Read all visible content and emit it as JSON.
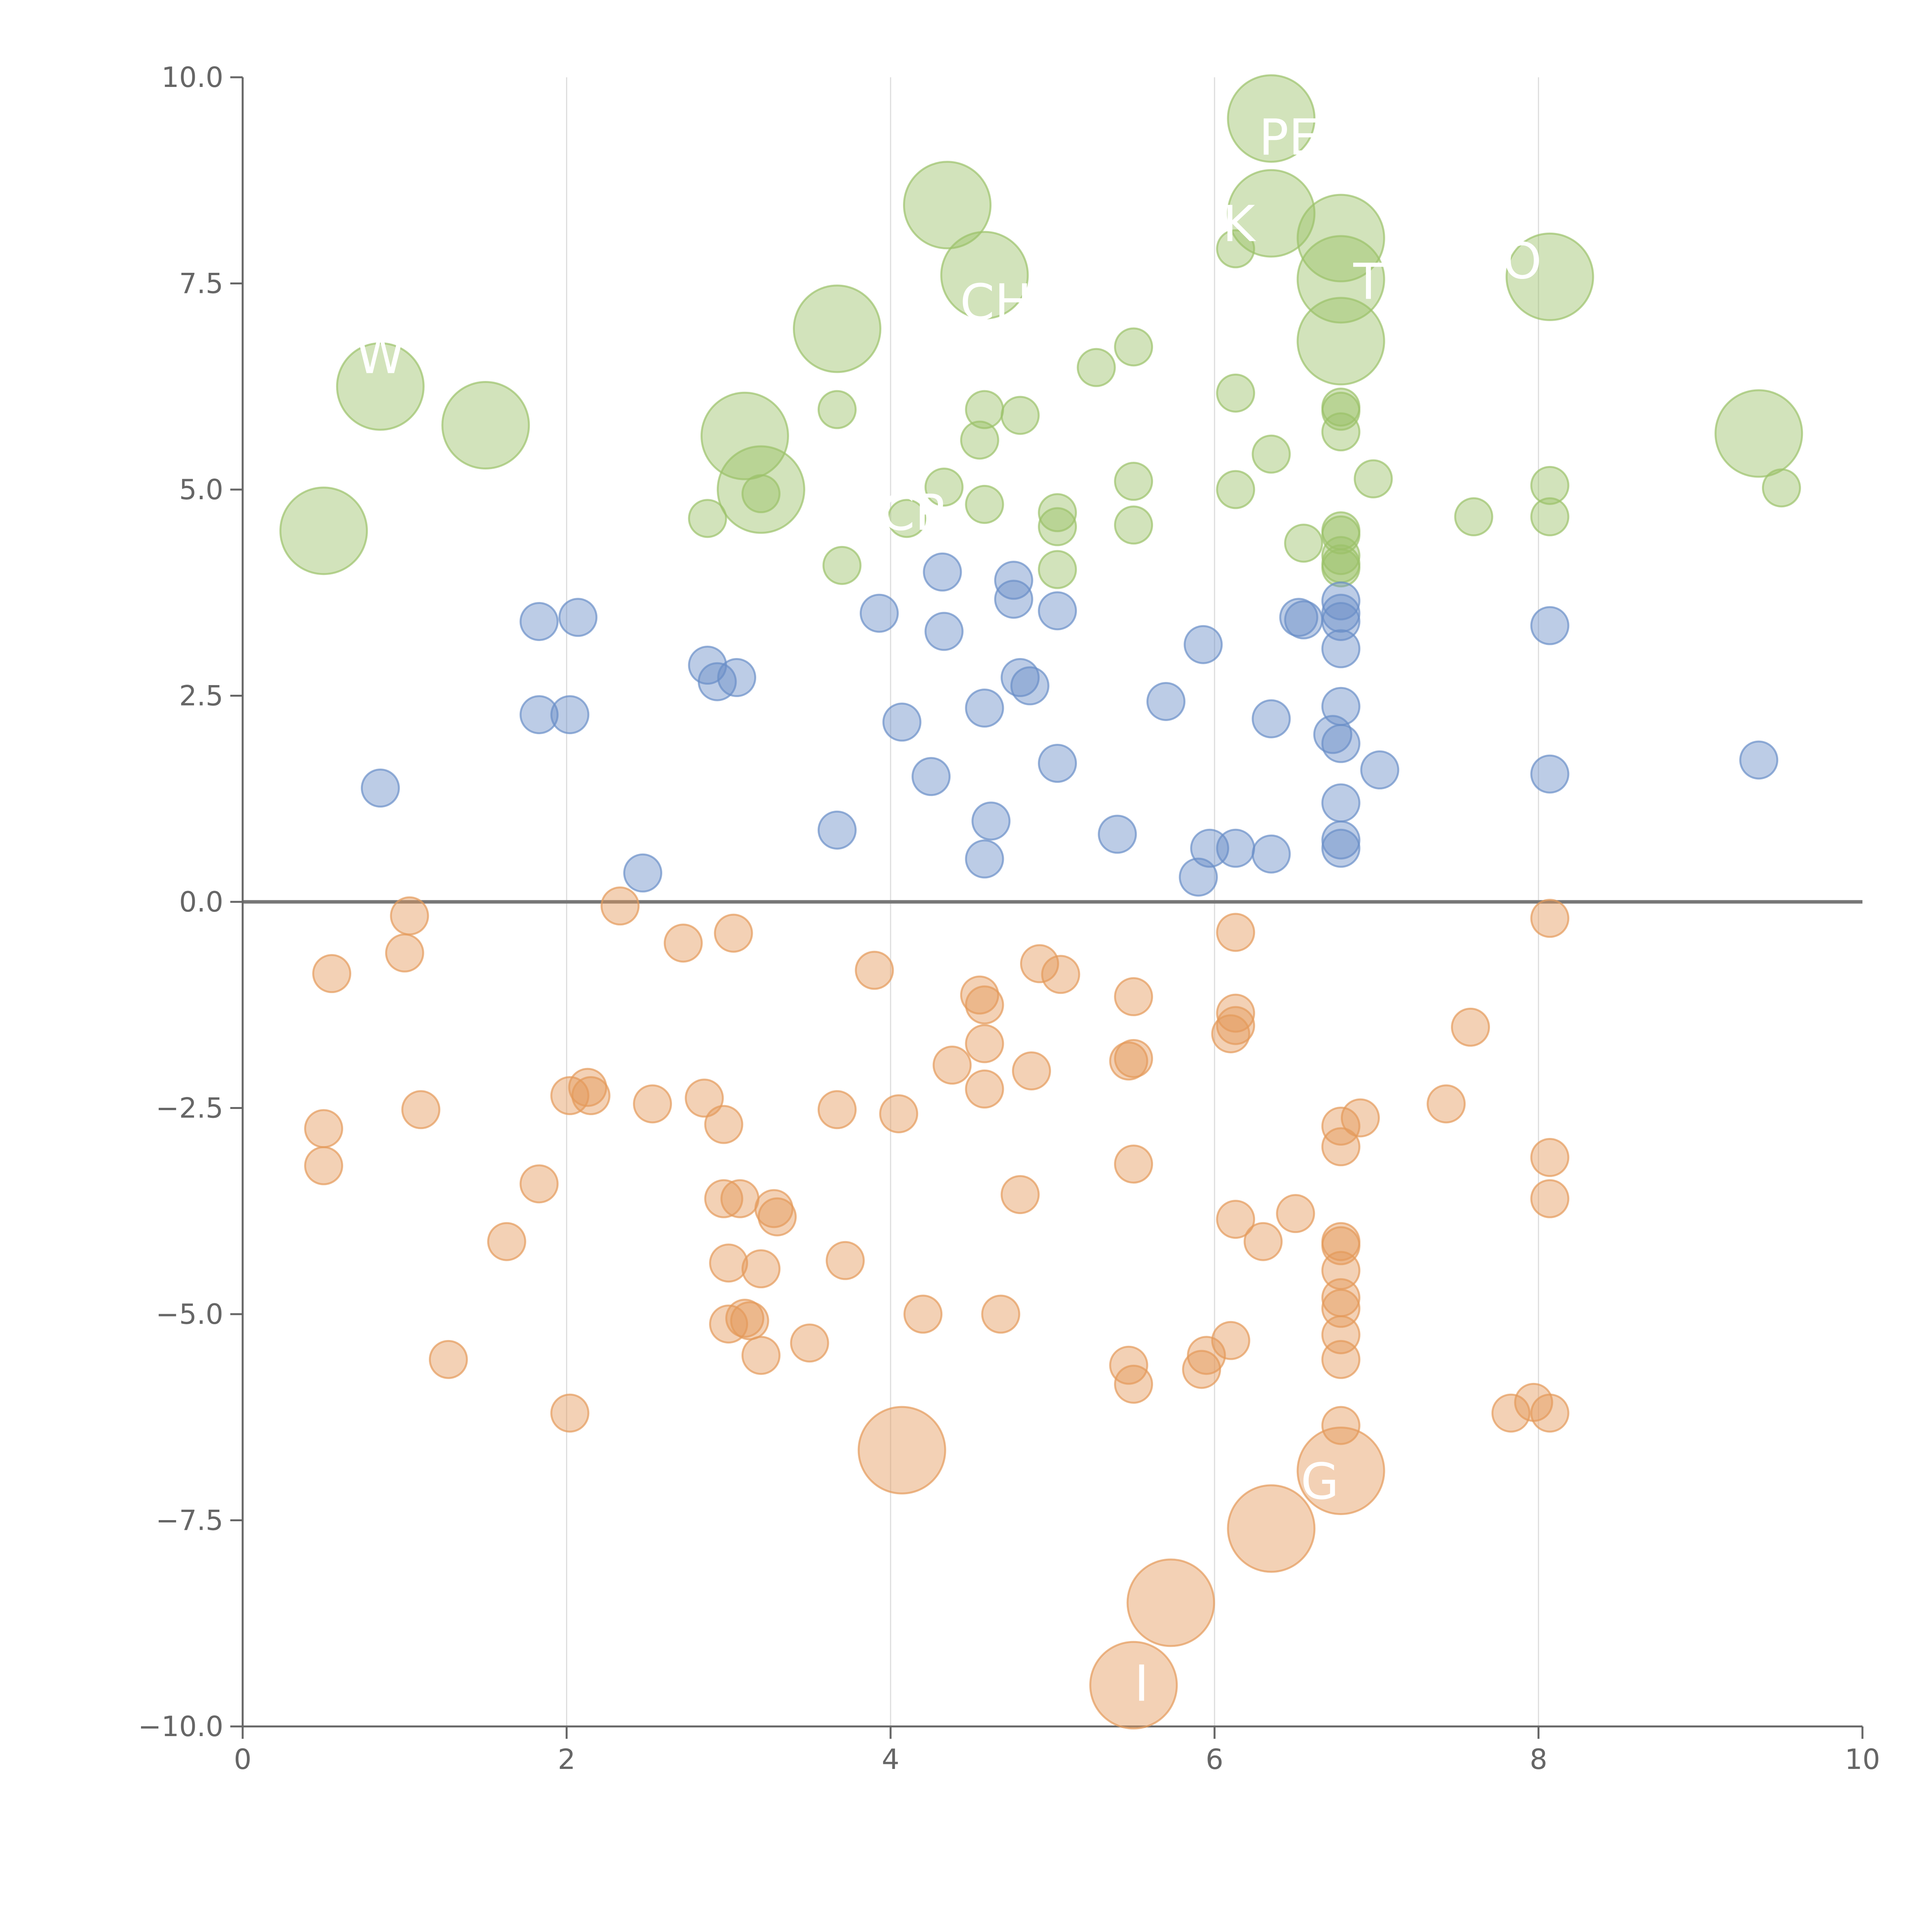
{
  "chart_data": {
    "type": "scatter",
    "title": "",
    "xlabel": "",
    "ylabel": "",
    "xlim": [
      0,
      10
    ],
    "ylim": [
      -10,
      10
    ],
    "x_ticks": [
      0,
      2,
      4,
      6,
      8,
      10
    ],
    "x_tick_labels": [
      "0",
      "2",
      "4",
      "6",
      "8",
      "10"
    ],
    "y_ticks": [
      10,
      7.5,
      5,
      2.5,
      0,
      -2.5,
      -5,
      -7.5,
      -10
    ],
    "y_tick_labels": [
      "10.0",
      "7.5",
      "5.0",
      "2.5",
      "0.0",
      "−2.5",
      "−5.0",
      "−7.5",
      "−10.0"
    ],
    "vertical_gridlines_at": [
      2,
      4,
      6,
      8
    ],
    "zero_line": true,
    "colors": {
      "green": "#9bc269",
      "blue": "#6a8fc8",
      "orange": "#e49a5a",
      "axis": "#666666",
      "grid": "#dddddd",
      "zero_line": "#777777",
      "label": "#ffffff"
    },
    "series": [
      {
        "name": "green",
        "color": "#9bc269",
        "points": [
          [
            6.35,
            9.5,
            1
          ],
          [
            4.35,
            8.45,
            1
          ],
          [
            6.35,
            8.35,
            1
          ],
          [
            6.78,
            8.05,
            1
          ],
          [
            4.58,
            7.6,
            1
          ],
          [
            6.78,
            7.55,
            1
          ],
          [
            8.07,
            7.58,
            1
          ],
          [
            3.67,
            6.95,
            1
          ],
          [
            6.78,
            6.8,
            1
          ],
          [
            0.85,
            6.25,
            1
          ],
          [
            1.5,
            5.78,
            1
          ],
          [
            3.1,
            5.65,
            1
          ],
          [
            9.36,
            5.68,
            1
          ],
          [
            3.2,
            5.0,
            1
          ],
          [
            0.5,
            4.5,
            1
          ],
          [
            6.13,
            7.92,
            0
          ],
          [
            5.27,
            6.48,
            0
          ],
          [
            5.5,
            6.73,
            0
          ],
          [
            6.13,
            6.17,
            0
          ],
          [
            3.67,
            5.97,
            0
          ],
          [
            4.58,
            5.97,
            0
          ],
          [
            4.8,
            5.9,
            0
          ],
          [
            4.55,
            5.6,
            0
          ],
          [
            6.78,
            6.0,
            0
          ],
          [
            6.78,
            5.95,
            0
          ],
          [
            6.78,
            5.7,
            0
          ],
          [
            6.35,
            5.43,
            0
          ],
          [
            6.98,
            5.13,
            0
          ],
          [
            5.5,
            5.1,
            0
          ],
          [
            8.07,
            5.05,
            0
          ],
          [
            6.13,
            5.0,
            0
          ],
          [
            4.33,
            5.03,
            0
          ],
          [
            3.2,
            4.95,
            0
          ],
          [
            9.5,
            5.02,
            0
          ],
          [
            2.87,
            4.65,
            0
          ],
          [
            4.1,
            4.65,
            0
          ],
          [
            4.58,
            4.82,
            0
          ],
          [
            5.03,
            4.72,
            0
          ],
          [
            5.03,
            4.55,
            0
          ],
          [
            5.5,
            4.57,
            0
          ],
          [
            7.6,
            4.67,
            0
          ],
          [
            8.07,
            4.67,
            0
          ],
          [
            6.55,
            4.35,
            0
          ],
          [
            6.78,
            4.5,
            0
          ],
          [
            6.78,
            4.45,
            0
          ],
          [
            6.78,
            4.2,
            0
          ],
          [
            6.78,
            4.1,
            0
          ],
          [
            6.78,
            4.05,
            0
          ],
          [
            3.7,
            4.08,
            0
          ],
          [
            5.03,
            4.03,
            0
          ]
        ]
      },
      {
        "name": "blue",
        "color": "#6a8fc8",
        "points": [
          [
            4.32,
            4.0,
            0
          ],
          [
            4.76,
            3.9,
            0
          ],
          [
            4.76,
            3.67,
            0
          ],
          [
            3.93,
            3.5,
            0
          ],
          [
            5.03,
            3.53,
            0
          ],
          [
            6.52,
            3.45,
            0
          ],
          [
            6.55,
            3.42,
            0
          ],
          [
            6.78,
            3.65,
            0
          ],
          [
            6.78,
            3.5,
            0
          ],
          [
            6.78,
            3.4,
            0
          ],
          [
            8.07,
            3.35,
            0
          ],
          [
            1.83,
            3.4,
            0
          ],
          [
            2.07,
            3.45,
            0
          ],
          [
            4.33,
            3.28,
            0
          ],
          [
            5.93,
            3.12,
            0
          ],
          [
            6.78,
            3.07,
            0
          ],
          [
            2.87,
            2.87,
            0
          ],
          [
            2.93,
            2.67,
            0
          ],
          [
            3.05,
            2.72,
            0
          ],
          [
            4.8,
            2.72,
            0
          ],
          [
            4.86,
            2.62,
            0
          ],
          [
            4.58,
            2.35,
            0
          ],
          [
            5.7,
            2.43,
            0
          ],
          [
            6.78,
            2.37,
            0
          ],
          [
            1.83,
            2.27,
            0
          ],
          [
            2.02,
            2.27,
            0
          ],
          [
            4.07,
            2.18,
            0
          ],
          [
            6.35,
            2.22,
            0
          ],
          [
            6.73,
            2.03,
            0
          ],
          [
            6.78,
            1.92,
            0
          ],
          [
            9.36,
            1.72,
            0
          ],
          [
            5.03,
            1.68,
            0
          ],
          [
            7.02,
            1.6,
            0
          ],
          [
            4.25,
            1.52,
            0
          ],
          [
            8.07,
            1.55,
            0
          ],
          [
            0.85,
            1.38,
            0
          ],
          [
            6.78,
            1.2,
            0
          ],
          [
            4.62,
            0.98,
            0
          ],
          [
            3.67,
            0.87,
            0
          ],
          [
            5.4,
            0.82,
            0
          ],
          [
            6.78,
            0.75,
            0
          ],
          [
            5.97,
            0.65,
            0
          ],
          [
            6.13,
            0.65,
            0
          ],
          [
            6.78,
            0.65,
            0
          ],
          [
            6.35,
            0.58,
            0
          ],
          [
            4.58,
            0.52,
            0
          ],
          [
            2.47,
            0.35,
            0
          ],
          [
            5.9,
            0.3,
            0
          ]
        ]
      },
      {
        "name": "orange",
        "color": "#e49a5a",
        "points": [
          [
            4.07,
            -6.65,
            1
          ],
          [
            6.78,
            -6.9,
            1
          ],
          [
            6.35,
            -7.6,
            1
          ],
          [
            5.73,
            -8.5,
            1
          ],
          [
            5.5,
            -9.5,
            1
          ],
          [
            1.03,
            -0.17,
            0
          ],
          [
            1.0,
            -0.62,
            0
          ],
          [
            2.33,
            -0.05,
            0
          ],
          [
            3.03,
            -0.38,
            0
          ],
          [
            2.72,
            -0.5,
            0
          ],
          [
            6.13,
            -0.37,
            0
          ],
          [
            8.07,
            -0.2,
            0
          ],
          [
            0.55,
            -0.87,
            0
          ],
          [
            3.9,
            -0.83,
            0
          ],
          [
            4.92,
            -0.75,
            0
          ],
          [
            5.05,
            -0.88,
            0
          ],
          [
            4.55,
            -1.13,
            0
          ],
          [
            4.58,
            -1.25,
            0
          ],
          [
            5.5,
            -1.15,
            0
          ],
          [
            6.13,
            -1.35,
            0
          ],
          [
            6.13,
            -1.5,
            0
          ],
          [
            6.1,
            -1.6,
            0
          ],
          [
            7.58,
            -1.52,
            0
          ],
          [
            4.58,
            -1.72,
            0
          ],
          [
            4.38,
            -1.98,
            0
          ],
          [
            5.47,
            -1.93,
            0
          ],
          [
            5.5,
            -1.9,
            0
          ],
          [
            4.87,
            -2.05,
            0
          ],
          [
            4.58,
            -2.27,
            0
          ],
          [
            2.02,
            -2.35,
            0
          ],
          [
            2.13,
            -2.25,
            0
          ],
          [
            2.15,
            -2.35,
            0
          ],
          [
            2.85,
            -2.38,
            0
          ],
          [
            1.1,
            -2.52,
            0
          ],
          [
            2.53,
            -2.45,
            0
          ],
          [
            3.67,
            -2.52,
            0
          ],
          [
            4.05,
            -2.57,
            0
          ],
          [
            0.5,
            -2.75,
            0
          ],
          [
            2.97,
            -2.7,
            0
          ],
          [
            7.43,
            -2.45,
            0
          ],
          [
            6.78,
            -2.72,
            0
          ],
          [
            6.9,
            -2.62,
            0
          ],
          [
            6.78,
            -2.97,
            0
          ],
          [
            8.07,
            -3.1,
            0
          ],
          [
            0.5,
            -3.2,
            0
          ],
          [
            5.5,
            -3.18,
            0
          ],
          [
            1.83,
            -3.42,
            0
          ],
          [
            2.97,
            -3.6,
            0
          ],
          [
            3.07,
            -3.6,
            0
          ],
          [
            3.28,
            -3.72,
            0
          ],
          [
            3.3,
            -3.82,
            0
          ],
          [
            4.8,
            -3.55,
            0
          ],
          [
            8.07,
            -3.6,
            0
          ],
          [
            6.13,
            -3.85,
            0
          ],
          [
            6.5,
            -3.78,
            0
          ],
          [
            1.63,
            -4.12,
            0
          ],
          [
            6.3,
            -4.12,
            0
          ],
          [
            6.78,
            -4.12,
            0
          ],
          [
            6.78,
            -4.17,
            0
          ],
          [
            3.0,
            -4.38,
            0
          ],
          [
            3.2,
            -4.45,
            0
          ],
          [
            3.72,
            -4.35,
            0
          ],
          [
            6.78,
            -4.47,
            0
          ],
          [
            6.78,
            -4.8,
            0
          ],
          [
            6.78,
            -4.93,
            0
          ],
          [
            4.2,
            -5.0,
            0
          ],
          [
            4.68,
            -5.0,
            0
          ],
          [
            3.0,
            -5.12,
            0
          ],
          [
            3.1,
            -5.05,
            0
          ],
          [
            3.13,
            -5.08,
            0
          ],
          [
            6.78,
            -5.25,
            0
          ],
          [
            1.27,
            -5.55,
            0
          ],
          [
            3.2,
            -5.5,
            0
          ],
          [
            3.5,
            -5.35,
            0
          ],
          [
            5.95,
            -5.5,
            0
          ],
          [
            6.1,
            -5.32,
            0
          ],
          [
            6.78,
            -5.55,
            0
          ],
          [
            5.47,
            -5.62,
            0
          ],
          [
            5.92,
            -5.67,
            0
          ],
          [
            5.5,
            -5.85,
            0
          ],
          [
            2.02,
            -6.2,
            0
          ],
          [
            6.78,
            -6.35,
            0
          ],
          [
            7.83,
            -6.2,
            0
          ],
          [
            7.97,
            -6.07,
            0
          ],
          [
            8.07,
            -6.2,
            0
          ]
        ]
      }
    ],
    "point_labels": [
      {
        "text": "PEF",
        "x": 6.55,
        "y": 9.25
      },
      {
        "text": "K",
        "x": 6.15,
        "y": 8.2
      },
      {
        "text": "T",
        "x": 6.95,
        "y": 7.5
      },
      {
        "text": "O",
        "x": 7.9,
        "y": 7.75
      },
      {
        "text": "CH",
        "x": 4.65,
        "y": 7.25
      },
      {
        "text": "W",
        "x": 0.85,
        "y": 6.6
      },
      {
        "text": "CR",
        "x": 4.15,
        "y": 4.7
      },
      {
        "text": "G",
        "x": 6.65,
        "y": -7.05
      },
      {
        "text": "I",
        "x": 5.55,
        "y": -9.5
      }
    ]
  }
}
